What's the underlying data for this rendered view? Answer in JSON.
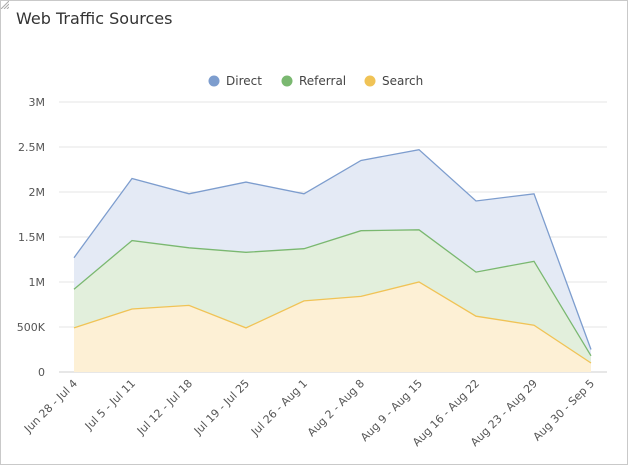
{
  "panel": {
    "title": "Web Traffic Sources"
  },
  "chart_data": {
    "type": "area",
    "title": "Web Traffic Sources",
    "xlabel": "",
    "ylabel": "",
    "stacked": false,
    "ylim": [
      0,
      3000000
    ],
    "yticks": [
      0,
      500000,
      1000000,
      1500000,
      2000000,
      2500000,
      3000000
    ],
    "ytick_labels": [
      "0",
      "500K",
      "1M",
      "1.5M",
      "2M",
      "2.5M",
      "3M"
    ],
    "grid": true,
    "legend_position": "top-center",
    "categories": [
      "Jun 28 - Jul 4",
      "Jul 5 - Jul 11",
      "Jul 12 - Jul 18",
      "Jul 19 - Jul 25",
      "Jul 26 - Aug 1",
      "Aug 2 - Aug 8",
      "Aug 9 - Aug 15",
      "Aug 16 - Aug 22",
      "Aug 23 - Aug 29",
      "Aug 30 - Sep 5"
    ],
    "series": [
      {
        "name": "Direct",
        "color": "#7d9dce",
        "fill": "#e4eaf5",
        "values": [
          1270000,
          2150000,
          1980000,
          2110000,
          1980000,
          2350000,
          2470000,
          1900000,
          1980000,
          250000
        ]
      },
      {
        "name": "Referral",
        "color": "#7ab870",
        "fill": "#e2efdc",
        "values": [
          920000,
          1460000,
          1380000,
          1330000,
          1370000,
          1570000,
          1580000,
          1110000,
          1230000,
          180000
        ]
      },
      {
        "name": "Search",
        "color": "#f0c356",
        "fill": "#fdf0d5",
        "values": [
          490000,
          700000,
          740000,
          490000,
          790000,
          840000,
          1000000,
          620000,
          520000,
          100000
        ]
      }
    ]
  }
}
